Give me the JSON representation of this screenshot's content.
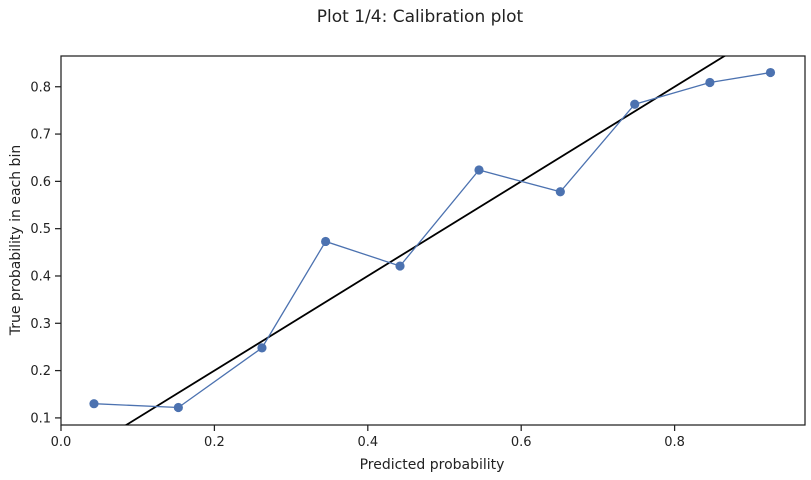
{
  "chart_data": {
    "type": "line",
    "title": "Plot 1/4: Calibration plot",
    "xlabel": "Predicted probability",
    "ylabel": "True probability in each bin",
    "xlim": [
      0.0,
      0.97
    ],
    "ylim": [
      0.085,
      0.865
    ],
    "xticks": [
      0.0,
      0.2,
      0.4,
      0.6,
      0.8
    ],
    "xtick_labels": [
      "0.0",
      "0.2",
      "0.4",
      "0.6",
      "0.8"
    ],
    "yticks": [
      0.1,
      0.2,
      0.3,
      0.4,
      0.5,
      0.6,
      0.7,
      0.8
    ],
    "ytick_labels": [
      "0.1",
      "0.2",
      "0.3",
      "0.4",
      "0.5",
      "0.6",
      "0.7",
      "0.8"
    ],
    "grid": false,
    "series": [
      {
        "x": [
          0.043,
          0.153,
          0.262,
          0.345,
          0.442,
          0.545,
          0.651,
          0.748,
          0.846,
          0.925
        ],
        "y": [
          0.13,
          0.122,
          0.248,
          0.473,
          0.421,
          0.624,
          0.578,
          0.763,
          0.809,
          0.83
        ],
        "color": "#4c72b0",
        "marker": "circle"
      }
    ],
    "reference_line": {
      "x": [
        0.0,
        1.0
      ],
      "y": [
        0.0,
        1.0
      ],
      "color": "#000000"
    }
  }
}
